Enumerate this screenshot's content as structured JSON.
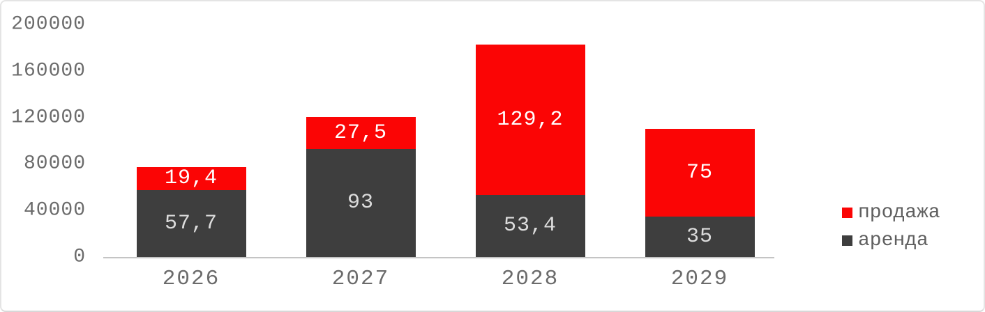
{
  "chart_data": {
    "type": "bar",
    "stacked": true,
    "title": "",
    "xlabel": "",
    "ylabel": "",
    "grid": false,
    "legend_position": "right",
    "categories": [
      "2026",
      "2027",
      "2028",
      "2029"
    ],
    "series": [
      {
        "name": "аренда",
        "color": "#3e3e3e",
        "label_color": "#dcdcdc",
        "values": [
          57.7,
          93,
          53.4,
          35
        ],
        "labels": [
          "57,7",
          "93",
          "53,4",
          "35"
        ]
      },
      {
        "name": "продажа",
        "color": "#fb0505",
        "label_color": "#ffffff",
        "values": [
          19.4,
          27.5,
          129.2,
          75
        ],
        "labels": [
          "19,4",
          "27,5",
          "129,2",
          "75"
        ]
      }
    ],
    "value_multiplier": 1000,
    "ylim": [
      0,
      200000
    ],
    "yticks": [
      {
        "value": 0,
        "label": "0"
      },
      {
        "value": 40000,
        "label": "40000"
      },
      {
        "value": 80000,
        "label": "80000"
      },
      {
        "value": 120000,
        "label": "120000"
      },
      {
        "value": 160000,
        "label": "160000"
      },
      {
        "value": 200000,
        "label": "200000"
      }
    ],
    "legend": [
      {
        "name": "продажа",
        "color": "#fb0505"
      },
      {
        "name": "аренда",
        "color": "#3e3e3e"
      }
    ],
    "colors": {
      "axis_text": "#6b6b6b",
      "axis_line": "#c4c4c4",
      "background": "#ffffff"
    }
  }
}
